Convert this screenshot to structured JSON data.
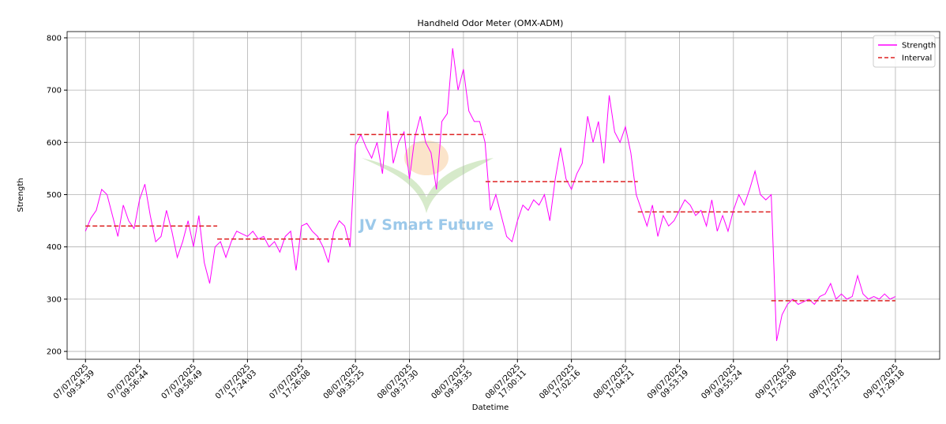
{
  "chart_data": {
    "type": "line",
    "title": "Handheld Odor Meter (OMX-ADM)",
    "xlabel": "Datetime",
    "ylabel": "Strength",
    "watermark": "JV Smart Future",
    "grid": true,
    "legend": "upper right",
    "xlim": [
      -3.4,
      158.2
    ],
    "ylim": [
      185,
      812
    ],
    "yticks": [
      200,
      300,
      400,
      500,
      600,
      700,
      800
    ],
    "xticks": [
      {
        "value": 0,
        "label": "07/07/2025 09:54:39"
      },
      {
        "value": 10,
        "label": "07/07/2025 09:56:44"
      },
      {
        "value": 20,
        "label": "07/07/2025 09:58:49"
      },
      {
        "value": 30,
        "label": "07/07/2025 17:24:03"
      },
      {
        "value": 40,
        "label": "07/07/2025 17:26:08"
      },
      {
        "value": 50,
        "label": "08/07/2025 09:35:25"
      },
      {
        "value": 60,
        "label": "08/07/2025 09:37:30"
      },
      {
        "value": 70,
        "label": "08/07/2025 09:39:35"
      },
      {
        "value": 80,
        "label": "08/07/2025 17:00:11"
      },
      {
        "value": 90,
        "label": "08/07/2025 17:02:16"
      },
      {
        "value": 100,
        "label": "08/07/2025 17:04:21"
      },
      {
        "value": 110,
        "label": "09/07/2025 09:53:19"
      },
      {
        "value": 120,
        "label": "09/07/2025 09:55:24"
      },
      {
        "value": 130,
        "label": "09/07/2025 17:25:08"
      },
      {
        "value": 140,
        "label": "09/07/2025 17:27:13"
      },
      {
        "value": 150,
        "label": "09/07/2025 17:29:18"
      }
    ],
    "series": [
      {
        "name": "Strength",
        "color": "#ff00ff",
        "values": [
          430,
          455,
          470,
          510,
          500,
          460,
          420,
          480,
          450,
          435,
          490,
          520,
          460,
          410,
          420,
          470,
          430,
          380,
          410,
          450,
          400,
          460,
          370,
          330,
          400,
          410,
          380,
          410,
          430,
          425,
          420,
          430,
          415,
          420,
          400,
          410,
          390,
          420,
          430,
          355,
          440,
          445,
          430,
          420,
          400,
          370,
          430,
          450,
          440,
          400,
          595,
          615,
          590,
          570,
          600,
          540,
          660,
          560,
          600,
          620,
          530,
          610,
          650,
          600,
          580,
          510,
          640,
          655,
          780,
          700,
          740,
          660,
          640,
          640,
          600,
          470,
          500,
          460,
          420,
          410,
          450,
          480,
          470,
          490,
          480,
          500,
          450,
          530,
          590,
          530,
          510,
          540,
          560,
          650,
          600,
          640,
          560,
          690,
          620,
          600,
          630,
          580,
          500,
          470,
          440,
          480,
          420,
          460,
          440,
          450,
          470,
          490,
          480,
          460,
          470,
          440,
          490,
          430,
          460,
          430,
          470,
          500,
          480,
          510,
          545,
          500,
          490,
          500,
          220,
          270,
          290,
          300,
          290,
          295,
          300,
          290,
          305,
          310,
          330,
          300,
          310,
          300,
          305,
          345,
          310,
          300,
          305,
          300,
          310,
          300,
          305
        ]
      },
      {
        "name": "Interval",
        "color": "#dd2222",
        "dashed": true,
        "segments": [
          [
            0,
            24.4
          ],
          [
            24.4,
            49
          ],
          [
            49,
            74.1
          ],
          [
            74.1,
            102.3
          ],
          [
            102.3,
            127
          ],
          [
            127,
            150
          ]
        ],
        "values": [
          440,
          415,
          615,
          525,
          467,
          297
        ]
      }
    ]
  }
}
